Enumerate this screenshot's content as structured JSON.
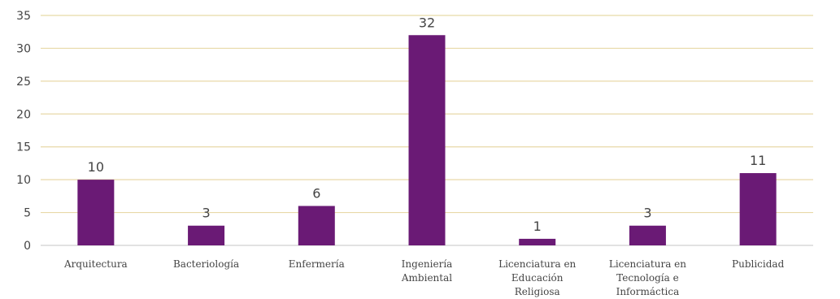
{
  "chart_data": {
    "type": "bar",
    "categories": [
      [
        "Arquitectura"
      ],
      [
        "Bacteriología"
      ],
      [
        "Enfermería"
      ],
      [
        "Ingeniería",
        "Ambiental"
      ],
      [
        "Licenciatura en",
        "Educación",
        "Religiosa"
      ],
      [
        "Licenciatura en",
        "Tecnología e",
        "Informáctica"
      ],
      [
        "Publicidad"
      ]
    ],
    "values": [
      10,
      3,
      6,
      32,
      1,
      3,
      11
    ],
    "ylim": [
      0,
      35
    ],
    "yticks": [
      0,
      5,
      10,
      15,
      20,
      25,
      30,
      35
    ],
    "grid": true,
    "data_labels": true,
    "colors": {
      "bar": "#6a1a75",
      "grid": "#e8d9a8",
      "axis": "#d9d9d9"
    }
  }
}
